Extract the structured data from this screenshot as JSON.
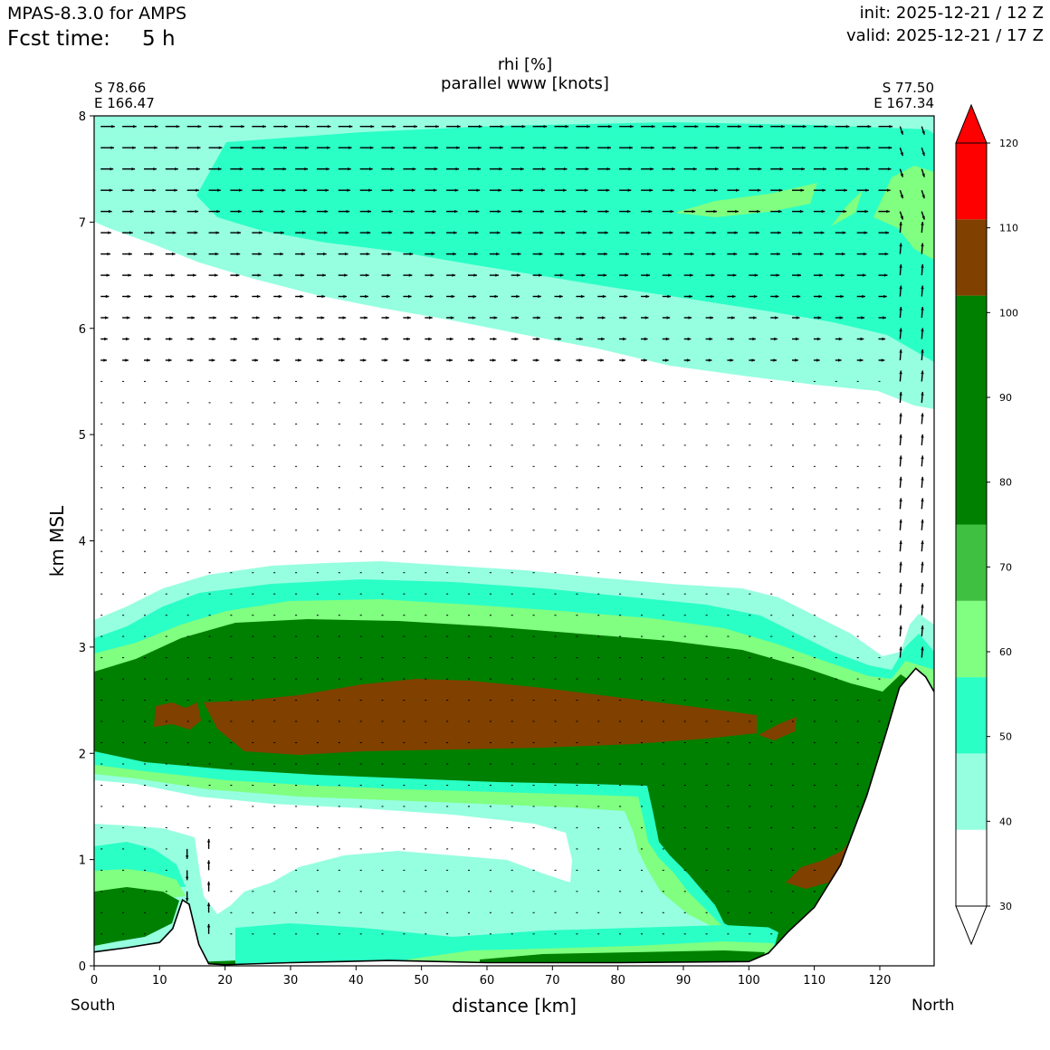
{
  "header": {
    "model": "MPAS-8.3.0 for AMPS",
    "fcst_label": "Fcst time:",
    "fcst_value": "5 h",
    "init": "init: 2025-12-21 / 12 Z",
    "valid": "valid: 2025-12-21 / 17 Z"
  },
  "endpoints": {
    "left_lat": "S 78.66",
    "left_lon": "E 166.47",
    "right_lat": "S 77.50",
    "right_lon": "E 167.34",
    "left_dir": "South",
    "right_dir": "North"
  },
  "chart_data": {
    "type": "contourf",
    "title": "rhi [%]",
    "subtitle": "parallel www [knots]",
    "xlabel": "distance [km]",
    "ylabel": "km MSL",
    "xlim": [
      0,
      128.3
    ],
    "ylim": [
      0,
      8
    ],
    "xticks": [
      0,
      10,
      20,
      30,
      40,
      50,
      60,
      70,
      80,
      90,
      100,
      110,
      120
    ],
    "yticks": [
      0,
      1,
      2,
      3,
      4,
      5,
      6,
      7,
      8
    ],
    "colorbar": {
      "levels": [
        30,
        40,
        50,
        60,
        70,
        80,
        90,
        100,
        110,
        120
      ],
      "extend": "both",
      "bands": [
        {
          "from": 30,
          "to": 39,
          "color": "#ffffff"
        },
        {
          "from": 39,
          "to": 48,
          "color": "#96ffe0"
        },
        {
          "from": 48,
          "to": 57,
          "color": "#2affc6"
        },
        {
          "from": 57,
          "to": 66,
          "color": "#80ff80"
        },
        {
          "from": 66,
          "to": 75,
          "color": "#40c040"
        },
        {
          "from": 75,
          "to": 102,
          "color": "#008000"
        },
        {
          "from": 102,
          "to": 111,
          "color": "#804000"
        },
        {
          "from": 111,
          "to": 120,
          "color": "#ff0000"
        }
      ],
      "upper_extend_color": "#ff0000",
      "lower_extend_color": "#ffffff"
    },
    "terrain_km": [
      {
        "x": 0,
        "z": 0.13
      },
      {
        "x": 5,
        "z": 0.17
      },
      {
        "x": 10,
        "z": 0.22
      },
      {
        "x": 12,
        "z": 0.35
      },
      {
        "x": 13.5,
        "z": 0.62
      },
      {
        "x": 14.5,
        "z": 0.58
      },
      {
        "x": 16,
        "z": 0.2
      },
      {
        "x": 17.5,
        "z": 0.02
      },
      {
        "x": 20,
        "z": 0.01
      },
      {
        "x": 30,
        "z": 0.03
      },
      {
        "x": 45,
        "z": 0.05
      },
      {
        "x": 60,
        "z": 0.03
      },
      {
        "x": 80,
        "z": 0.03
      },
      {
        "x": 100,
        "z": 0.04
      },
      {
        "x": 103,
        "z": 0.12
      },
      {
        "x": 106,
        "z": 0.32
      },
      {
        "x": 110,
        "z": 0.55
      },
      {
        "x": 114,
        "z": 0.95
      },
      {
        "x": 118,
        "z": 1.6
      },
      {
        "x": 121,
        "z": 2.2
      },
      {
        "x": 123,
        "z": 2.62
      },
      {
        "x": 125.5,
        "z": 2.8
      },
      {
        "x": 127,
        "z": 2.72
      },
      {
        "x": 128.3,
        "z": 2.58
      }
    ]
  }
}
